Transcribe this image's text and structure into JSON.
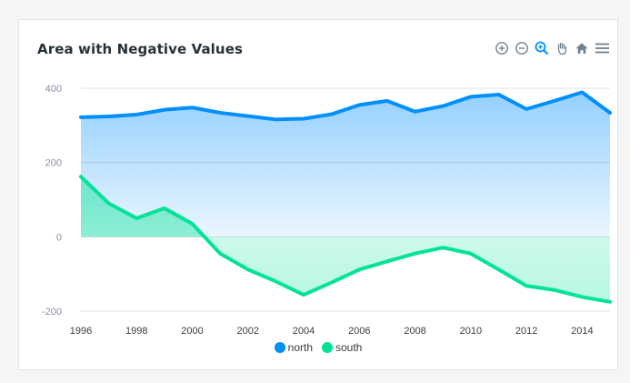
{
  "colors": {
    "north": "#008ffb",
    "south": "#00e396",
    "gridline": "#e0e0e0",
    "icon": "#6e8192",
    "icon_active": "#008ffb"
  },
  "toolbar": {
    "icons": [
      "zoom-in-icon",
      "zoom-out-icon",
      "selection-zoom-icon",
      "pan-icon",
      "reset-home-icon",
      "menu-icon"
    ]
  },
  "chart_data": {
    "type": "area",
    "title": "Area with Negative Values",
    "x": [
      "1996",
      "1997",
      "1998",
      "1999",
      "2000",
      "2001",
      "2002",
      "2003",
      "2004",
      "2005",
      "2006",
      "2007",
      "2008",
      "2009",
      "2010",
      "2011",
      "2012",
      "2013",
      "2014",
      "2015"
    ],
    "x_tick_labels": [
      "1996",
      "1998",
      "2000",
      "2002",
      "2004",
      "2006",
      "2008",
      "2010",
      "2012",
      "2014"
    ],
    "y_tick_labels": [
      "400",
      "200",
      "0",
      "-200"
    ],
    "ylim": [
      -200,
      400
    ],
    "grid": true,
    "legend_position": "bottom",
    "series": [
      {
        "name": "north",
        "values": [
          322,
          324,
          329,
          342,
          348,
          334,
          325,
          316,
          318,
          330,
          355,
          366,
          337,
          352,
          377,
          383,
          344,
          366,
          389,
          334
        ]
      },
      {
        "name": "south",
        "values": [
          162,
          90,
          50,
          77,
          35,
          -45,
          -88,
          -120,
          -156,
          -123,
          -88,
          -66,
          -45,
          -29,
          -45,
          -88,
          -132,
          -143,
          -162,
          -175
        ]
      }
    ]
  }
}
